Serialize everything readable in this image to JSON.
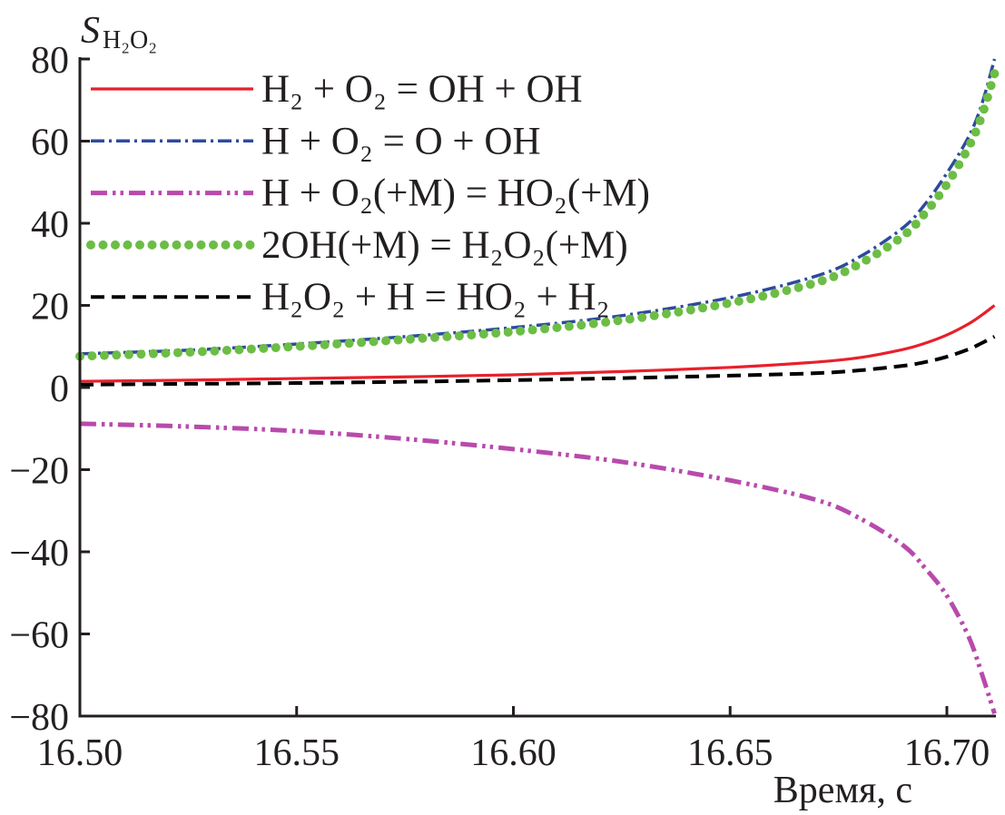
{
  "chart_data": {
    "type": "line",
    "title": "",
    "xlabel": "Время, с",
    "ylabel": "S",
    "ylabel_subscript": "H₂O₂",
    "xlim": [
      16.5,
      16.711
    ],
    "ylim": [
      -80,
      80
    ],
    "xticks": [
      16.5,
      16.55,
      16.6,
      16.65,
      16.7
    ],
    "xtick_labels": [
      "16.50",
      "16.55",
      "16.60",
      "16.65",
      "16.70"
    ],
    "yticks": [
      80,
      60,
      40,
      20,
      0,
      -20,
      -40,
      -60,
      -80
    ],
    "ytick_labels": [
      "80",
      "60",
      "40",
      "20",
      "0",
      "−20",
      "−40",
      "−60",
      "−80"
    ],
    "grid": false,
    "legend_position": "top-left",
    "x": [
      16.5,
      16.525,
      16.55,
      16.575,
      16.6,
      16.625,
      16.65,
      16.67,
      16.68,
      16.69,
      16.695,
      16.7,
      16.705,
      16.708,
      16.711
    ],
    "series": [
      {
        "name": "H₂ + O₂ = OH + OH",
        "color": "#e8202a",
        "style": "solid",
        "values": [
          1.5,
          1.8,
          2.2,
          2.6,
          3.1,
          3.9,
          4.9,
          6.2,
          7.3,
          9.3,
          10.8,
          12.8,
          15.5,
          17.6,
          20.0
        ]
      },
      {
        "name": "H + O₂ = O + OH",
        "color": "#2e4a9e",
        "style": "dash-dot",
        "values": [
          8.2,
          9.1,
          10.6,
          12.4,
          14.6,
          17.5,
          21.9,
          27.2,
          31.9,
          39.0,
          44.7,
          52.2,
          61.0,
          68.8,
          80.0
        ]
      },
      {
        "name": "H + O₂(+M) = HO₂(+M)",
        "color": "#b84aac",
        "style": "dash-dot-dot",
        "values": [
          -8.8,
          -9.5,
          -10.6,
          -12.5,
          -15.0,
          -18.1,
          -22.6,
          -27.4,
          -31.9,
          -38.5,
          -44.0,
          -50.7,
          -60.6,
          -69.5,
          -79.4
        ]
      },
      {
        "name": "2OH(+M) = H₂O₂(+M)",
        "color": "#6cbd45",
        "style": "dotted",
        "values": [
          7.6,
          8.6,
          10.0,
          11.7,
          13.6,
          16.4,
          20.6,
          25.6,
          30.2,
          37.0,
          42.5,
          49.5,
          58.5,
          66.0,
          76.5
        ]
      },
      {
        "name": "H₂O₂ + H = HO₂ + H₂",
        "color": "#000000",
        "style": "dashed",
        "values": [
          0.7,
          0.9,
          1.1,
          1.4,
          1.8,
          2.3,
          2.9,
          3.5,
          4.2,
          5.3,
          6.2,
          7.5,
          9.3,
          10.8,
          12.4
        ]
      }
    ]
  }
}
